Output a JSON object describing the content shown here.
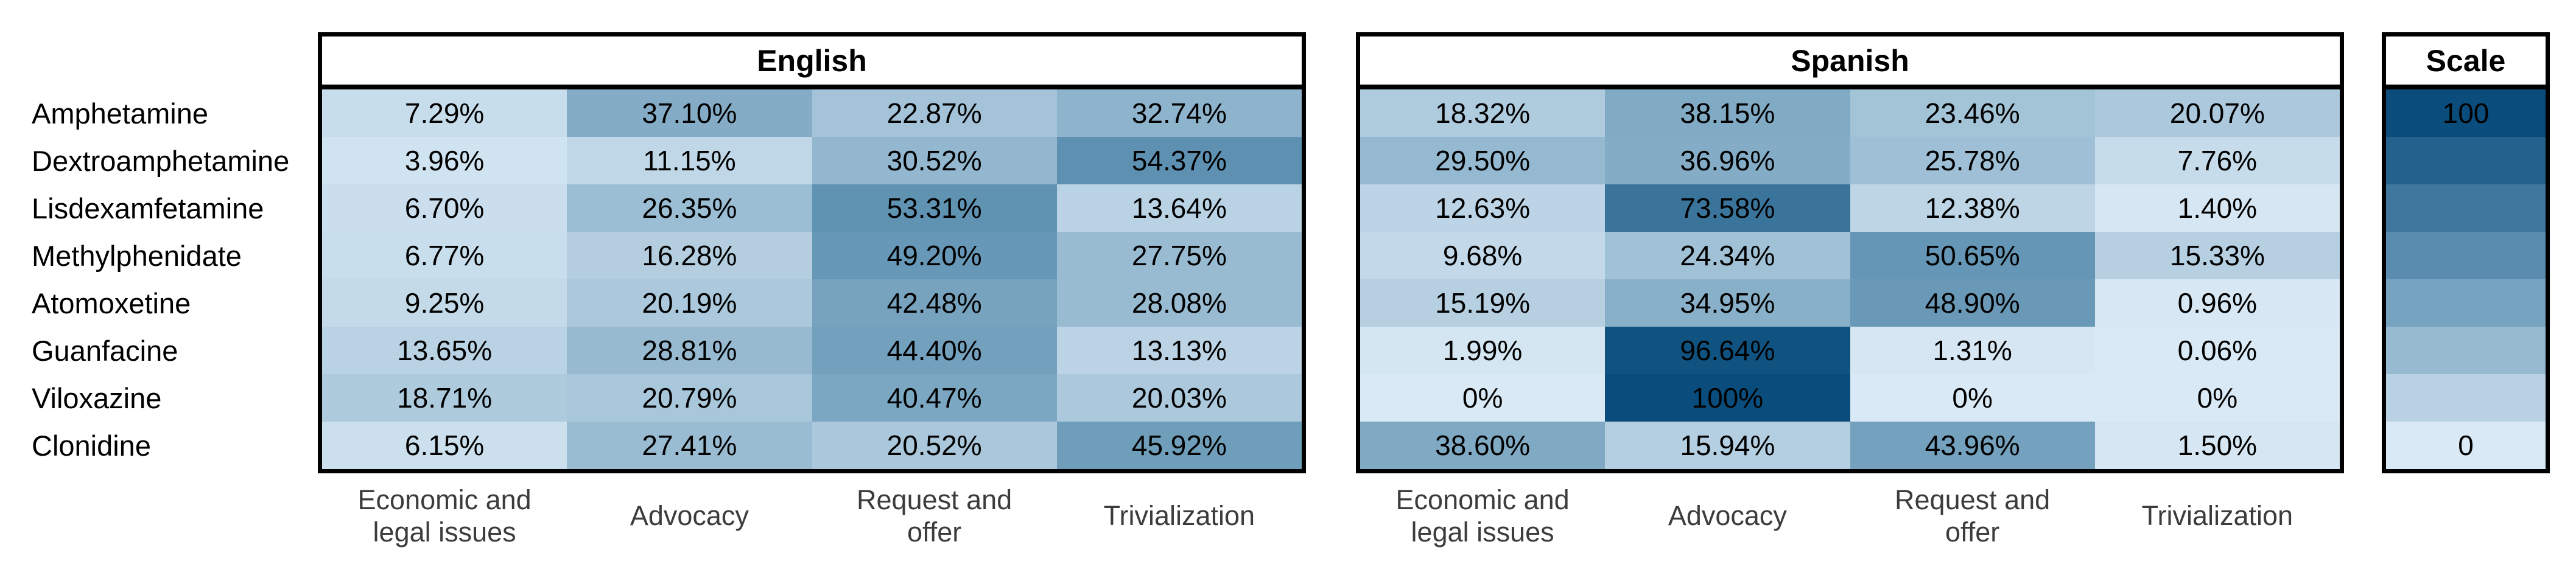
{
  "figure": {
    "row_labels": [
      "Amphetamine",
      "Dextroamphetamine",
      "Lisdexamfetamine",
      "Methylphenidate",
      "Atomoxetine",
      "Guanfacine",
      "Viloxazine",
      "Clonidine"
    ],
    "column_labels_display": [
      "Economic and\nlegal issues",
      "Advocacy",
      "Request and\noffer",
      "Trivialization"
    ]
  },
  "chart_data": [
    {
      "type": "heatmap",
      "title": "English",
      "rows": [
        "Amphetamine",
        "Dextroamphetamine",
        "Lisdexamfetamine",
        "Methylphenidate",
        "Atomoxetine",
        "Guanfacine",
        "Viloxazine",
        "Clonidine"
      ],
      "columns": [
        "Economic and legal issues",
        "Advocacy",
        "Request and offer",
        "Trivialization"
      ],
      "values": [
        [
          7.29,
          37.1,
          22.87,
          32.74
        ],
        [
          3.96,
          11.15,
          30.52,
          54.37
        ],
        [
          6.7,
          26.35,
          53.31,
          13.64
        ],
        [
          6.77,
          16.28,
          49.2,
          27.75
        ],
        [
          9.25,
          20.19,
          42.48,
          28.08
        ],
        [
          13.65,
          28.81,
          44.4,
          13.13
        ],
        [
          18.71,
          20.79,
          40.47,
          20.03
        ],
        [
          6.15,
          27.41,
          20.52,
          45.92
        ]
      ],
      "labels": [
        [
          "7.29%",
          "37.10%",
          "22.87%",
          "32.74%"
        ],
        [
          "3.96%",
          "11.15%",
          "30.52%",
          "54.37%"
        ],
        [
          "6.70%",
          "26.35%",
          "53.31%",
          "13.64%"
        ],
        [
          "6.77%",
          "16.28%",
          "49.20%",
          "27.75%"
        ],
        [
          "9.25%",
          "20.19%",
          "42.48%",
          "28.08%"
        ],
        [
          "13.65%",
          "28.81%",
          "44.40%",
          "13.13%"
        ],
        [
          "18.71%",
          "20.79%",
          "40.47%",
          "20.03%"
        ],
        [
          "6.15%",
          "27.41%",
          "20.52%",
          "45.92%"
        ]
      ],
      "value_range": [
        0,
        100
      ],
      "grid": false,
      "legend_position": "right"
    },
    {
      "type": "heatmap",
      "title": "Spanish",
      "rows": [
        "Amphetamine",
        "Dextroamphetamine",
        "Lisdexamfetamine",
        "Methylphenidate",
        "Atomoxetine",
        "Guanfacine",
        "Viloxazine",
        "Clonidine"
      ],
      "columns": [
        "Economic and legal issues",
        "Advocacy",
        "Request and offer",
        "Trivialization"
      ],
      "values": [
        [
          18.32,
          38.15,
          23.46,
          20.07
        ],
        [
          29.5,
          36.96,
          25.78,
          7.76
        ],
        [
          12.63,
          73.58,
          12.38,
          1.4
        ],
        [
          9.68,
          24.34,
          50.65,
          15.33
        ],
        [
          15.19,
          34.95,
          48.9,
          0.96
        ],
        [
          1.99,
          96.64,
          1.31,
          0.06
        ],
        [
          0,
          100,
          0,
          0
        ],
        [
          38.6,
          15.94,
          43.96,
          1.5
        ]
      ],
      "labels": [
        [
          "18.32%",
          "38.15%",
          "23.46%",
          "20.07%"
        ],
        [
          "29.50%",
          "36.96%",
          "25.78%",
          "7.76%"
        ],
        [
          "12.63%",
          "73.58%",
          "12.38%",
          "1.40%"
        ],
        [
          "9.68%",
          "24.34%",
          "50.65%",
          "15.33%"
        ],
        [
          "15.19%",
          "34.95%",
          "48.90%",
          "0.96%"
        ],
        [
          "1.99%",
          "96.64%",
          "1.31%",
          "0.06%"
        ],
        [
          "0%",
          "100%",
          "0%",
          "0%"
        ],
        [
          "38.60%",
          "15.94%",
          "43.96%",
          "1.50%"
        ]
      ],
      "value_range": [
        0,
        100
      ],
      "grid": false,
      "legend_position": "right"
    }
  ],
  "legend": {
    "title": "Scale",
    "max_label": "100",
    "min_label": "0",
    "band_values": [
      100,
      85.71,
      71.43,
      57.14,
      42.86,
      28.57,
      14.29,
      0
    ]
  },
  "colors": {
    "colormap_low": "#d9e9f5",
    "colormap_mid": "#6697b6",
    "colormap_high": "#0a4d7c",
    "border": "#000000",
    "column_label_text": "#3c3c3c"
  }
}
